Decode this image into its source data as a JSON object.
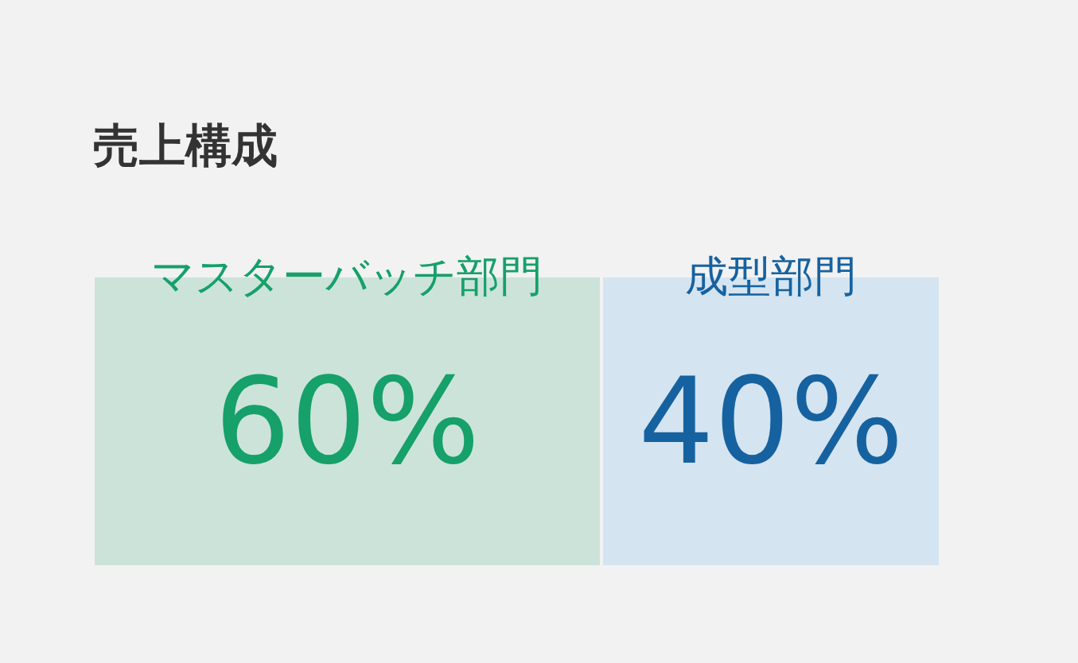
{
  "chart_data": {
    "type": "bar",
    "title": "売上構成",
    "orientation": "horizontal",
    "stacked": true,
    "categories": [
      null
    ],
    "series": [
      {
        "name": "マスターバッチ部門",
        "color": "#cce3da",
        "values": [
          60
        ],
        "value_labels": [
          "60%"
        ]
      },
      {
        "name": "成型部門",
        "color": "#d4e4f1",
        "values": [
          40
        ],
        "value_labels": [
          "40%"
        ]
      }
    ],
    "legend": false,
    "tick_labels": false
  }
}
